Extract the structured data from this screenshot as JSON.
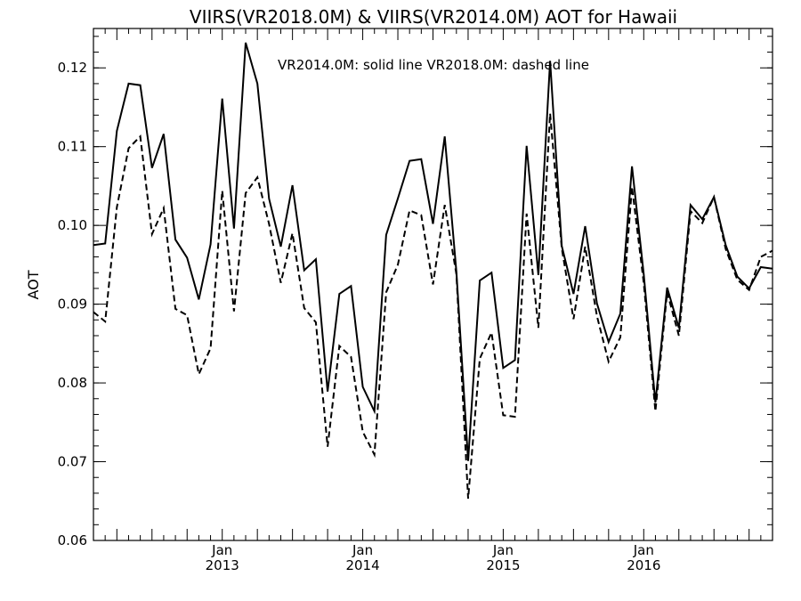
{
  "chart_data": {
    "type": "line",
    "title": "VIIRS(VR2018.0M) & VIIRS(VR2014.0M)  AOT for Hawaii",
    "annotation": "VR2014.0M: solid line   VR2018.0M: dashed line",
    "xlabel": "",
    "ylabel": "AOT",
    "x_ticks": [
      {
        "month": "Jan",
        "year": "2013",
        "x": "2013-01"
      },
      {
        "month": "Jan",
        "year": "2014",
        "x": "2014-01"
      },
      {
        "month": "Jan",
        "year": "2015",
        "x": "2015-01"
      },
      {
        "month": "Jan",
        "year": "2016",
        "x": "2016-01"
      }
    ],
    "xlim": [
      "2012-02",
      "2016-12"
    ],
    "ylim": [
      0.06,
      0.125
    ],
    "y_ticks": [
      "0.06",
      "0.07",
      "0.08",
      "0.09",
      "0.10",
      "0.11",
      "0.12"
    ],
    "x": [
      "2012-02",
      "2012-03",
      "2012-04",
      "2012-05",
      "2012-06",
      "2012-07",
      "2012-08",
      "2012-09",
      "2012-10",
      "2012-11",
      "2012-12",
      "2013-01",
      "2013-02",
      "2013-03",
      "2013-04",
      "2013-05",
      "2013-06",
      "2013-07",
      "2013-08",
      "2013-09",
      "2013-10",
      "2013-11",
      "2013-12",
      "2014-01",
      "2014-02",
      "2014-03",
      "2014-04",
      "2014-05",
      "2014-06",
      "2014-07",
      "2014-08",
      "2014-09",
      "2014-10",
      "2014-11",
      "2014-12",
      "2015-01",
      "2015-02",
      "2015-03",
      "2015-04",
      "2015-05",
      "2015-06",
      "2015-07",
      "2015-08",
      "2015-09",
      "2015-10",
      "2015-11",
      "2015-12",
      "2016-01",
      "2016-02",
      "2016-03",
      "2016-04",
      "2016-05",
      "2016-06",
      "2016-07",
      "2016-08",
      "2016-09",
      "2016-10",
      "2016-11",
      "2016-12"
    ],
    "series": [
      {
        "name": "VR2014.0M",
        "style": "solid",
        "color": "#000000",
        "values": [
          0.0975,
          0.0977,
          0.112,
          0.118,
          0.1178,
          0.1073,
          0.1116,
          0.0982,
          0.0959,
          0.0906,
          0.0976,
          0.1161,
          0.0996,
          0.1232,
          0.118,
          0.1034,
          0.0973,
          0.1051,
          0.0943,
          0.0957,
          0.0789,
          0.0913,
          0.0923,
          0.0795,
          0.0764,
          0.0988,
          0.1034,
          0.1082,
          0.1084,
          0.1002,
          0.1113,
          0.0941,
          0.0701,
          0.093,
          0.094,
          0.0819,
          0.0829,
          0.1101,
          0.0937,
          0.1209,
          0.0974,
          0.0913,
          0.0999,
          0.0901,
          0.0852,
          0.0888,
          0.1075,
          0.0938,
          0.0775,
          0.0921,
          0.087,
          0.1026,
          0.1008,
          0.1036,
          0.0975,
          0.0935,
          0.092,
          0.0947,
          0.0945
        ]
      },
      {
        "name": "VR2018.0M",
        "style": "dashed",
        "color": "#000000",
        "values": [
          0.089,
          0.0878,
          0.1023,
          0.1098,
          0.1113,
          0.0989,
          0.1022,
          0.0894,
          0.0886,
          0.0811,
          0.0844,
          0.1044,
          0.0891,
          0.1041,
          0.1061,
          0.1002,
          0.0927,
          0.099,
          0.0895,
          0.0877,
          0.0719,
          0.0847,
          0.0833,
          0.0738,
          0.0709,
          0.0915,
          0.095,
          0.1019,
          0.1013,
          0.0925,
          0.1026,
          0.0938,
          0.0653,
          0.0831,
          0.0864,
          0.0759,
          0.0757,
          0.1015,
          0.087,
          0.1142,
          0.0971,
          0.0881,
          0.0973,
          0.0885,
          0.0827,
          0.0858,
          0.1049,
          0.0927,
          0.0764,
          0.0915,
          0.086,
          0.1018,
          0.1003,
          0.1036,
          0.097,
          0.0931,
          0.0918,
          0.096,
          0.0968
        ]
      }
    ],
    "grid": false,
    "minor_ticks_per_month": true
  }
}
